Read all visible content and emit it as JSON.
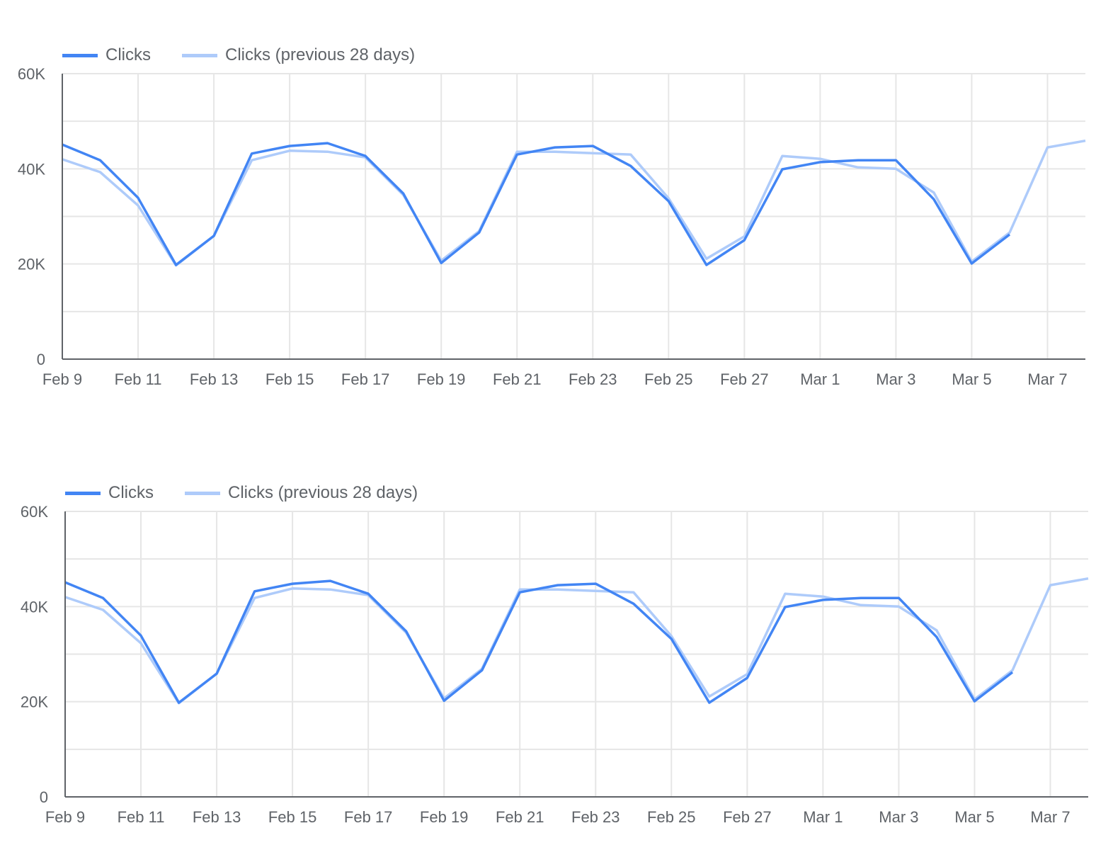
{
  "chart_data": [
    {
      "type": "line",
      "title": "",
      "xlabel": "",
      "ylabel": "",
      "legend_position": "top-left",
      "grid": true,
      "ylim": [
        0,
        60000
      ],
      "y_ticks": [
        "0",
        "20K",
        "40K",
        "60K"
      ],
      "x_tick_labels": [
        "Feb 9",
        "Feb 11",
        "Feb 13",
        "Feb 15",
        "Feb 17",
        "Feb 19",
        "Feb 21",
        "Feb 23",
        "Feb 25",
        "Feb 27",
        "Mar 1",
        "Mar 3",
        "Mar 5",
        "Mar 7"
      ],
      "x": [
        "Feb 9",
        "Feb 10",
        "Feb 11",
        "Feb 12",
        "Feb 13",
        "Feb 14",
        "Feb 15",
        "Feb 16",
        "Feb 17",
        "Feb 18",
        "Feb 19",
        "Feb 20",
        "Feb 21",
        "Feb 22",
        "Feb 23",
        "Feb 24",
        "Feb 25",
        "Feb 26",
        "Feb 27",
        "Feb 28",
        "Mar 1",
        "Mar 2",
        "Mar 3",
        "Mar 4",
        "Mar 5",
        "Mar 6",
        "Mar 7",
        "Mar 8"
      ],
      "series": [
        {
          "name": "Clicks",
          "color": "#4285f4",
          "values": [
            45100,
            41800,
            33900,
            19800,
            25900,
            43200,
            44800,
            45400,
            42700,
            34800,
            20200,
            26600,
            43000,
            44500,
            44800,
            40600,
            33200,
            19800,
            25000,
            39900,
            41400,
            41800,
            41800,
            33600,
            20100,
            26200,
            null,
            null
          ]
        },
        {
          "name": "Clicks (previous 28 days)",
          "color": "#aecbfa",
          "values": [
            42000,
            39300,
            32300,
            19700,
            25900,
            41800,
            43800,
            43600,
            42400,
            34500,
            20700,
            26900,
            43600,
            43600,
            43300,
            43000,
            33800,
            21100,
            25800,
            42700,
            42100,
            40300,
            40000,
            35000,
            20500,
            26600,
            44500,
            45900
          ]
        }
      ]
    },
    {
      "type": "line",
      "title": "",
      "xlabel": "",
      "ylabel": "",
      "legend_position": "top-left",
      "grid": true,
      "ylim": [
        0,
        60000
      ],
      "y_ticks": [
        "0",
        "20K",
        "40K",
        "60K"
      ],
      "x_tick_labels": [
        "Feb 9",
        "Feb 11",
        "Feb 13",
        "Feb 15",
        "Feb 17",
        "Feb 19",
        "Feb 21",
        "Feb 23",
        "Feb 25",
        "Feb 27",
        "Mar 1",
        "Mar 3",
        "Mar 5",
        "Mar 7"
      ],
      "x": [
        "Feb 9",
        "Feb 10",
        "Feb 11",
        "Feb 12",
        "Feb 13",
        "Feb 14",
        "Feb 15",
        "Feb 16",
        "Feb 17",
        "Feb 18",
        "Feb 19",
        "Feb 20",
        "Feb 21",
        "Feb 22",
        "Feb 23",
        "Feb 24",
        "Feb 25",
        "Feb 26",
        "Feb 27",
        "Feb 28",
        "Mar 1",
        "Mar 2",
        "Mar 3",
        "Mar 4",
        "Mar 5",
        "Mar 6",
        "Mar 7",
        "Mar 8"
      ],
      "series": [
        {
          "name": "Clicks",
          "color": "#4285f4",
          "values": [
            45100,
            41800,
            33900,
            19800,
            25900,
            43200,
            44800,
            45400,
            42700,
            34800,
            20200,
            26600,
            43000,
            44500,
            44800,
            40600,
            33200,
            19800,
            25000,
            39900,
            41400,
            41800,
            41800,
            33600,
            20100,
            26200,
            null,
            null
          ]
        },
        {
          "name": "Clicks (previous 28 days)",
          "color": "#aecbfa",
          "values": [
            42000,
            39300,
            32300,
            19700,
            25900,
            41800,
            43800,
            43600,
            42400,
            34500,
            20700,
            26900,
            43600,
            43600,
            43300,
            43000,
            33800,
            21100,
            25800,
            42700,
            42100,
            40300,
            40000,
            35000,
            20500,
            26600,
            44500,
            45900
          ]
        }
      ]
    }
  ]
}
